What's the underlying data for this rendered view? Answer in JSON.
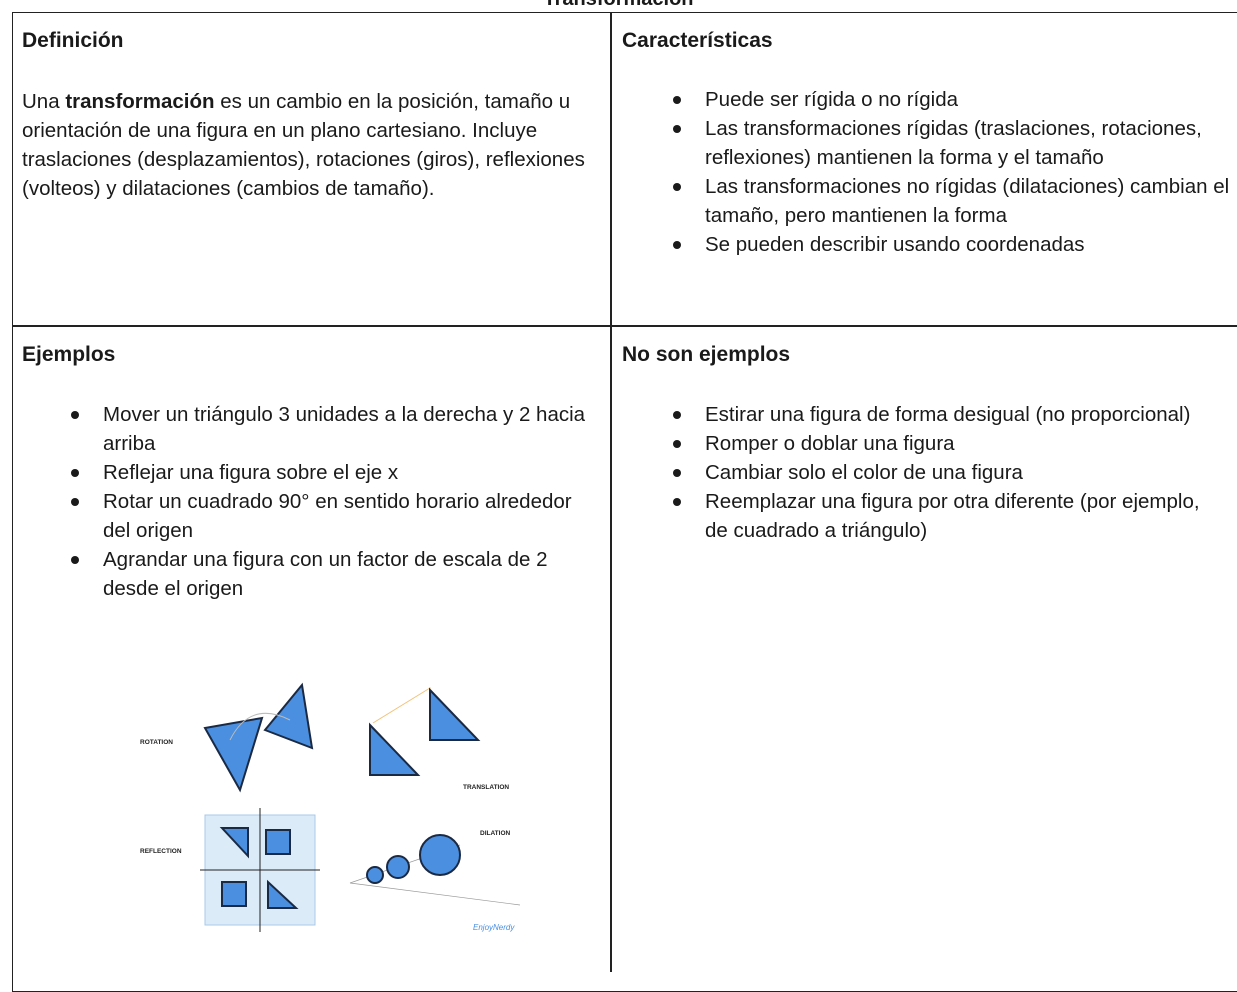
{
  "title": "Transformación",
  "definition": {
    "heading": "Definición",
    "text": [
      "Una ",
      "transformación",
      " es un cambio en la posición, tamaño u orientación de una figura en un plano cartesiano. Incluye traslaciones (desplazamientos), rotaciones (giros), reflexiones (volteos) y dilataciones (cambios de tamaño)."
    ]
  },
  "characteristics": {
    "heading": "Características",
    "items": [
      "Puede ser rígida o no rígida",
      "Las transformaciones rígidas (traslaciones, rotaciones, reflexiones) mantienen la forma y el tamaño",
      "Las transformaciones no rígidas (dilataciones) cambian el tamaño, pero mantienen la forma",
      "Se pueden describir usando coordenadas"
    ]
  },
  "examples": {
    "heading": "Ejemplos",
    "items": [
      "Mover un triángulo 3 unidades a la derecha y 2 hacia arriba",
      "Reflejar una figura sobre el eje x",
      "Rotar un cuadrado 90° en sentido horario alrededor del origen",
      "Agrandar una figura con un factor de escala de 2 desde el origen"
    ],
    "image_labels": [
      "ROTATION",
      "TRANSLATION",
      "REFLECTION",
      "DILATION",
      "EnjoyNerdy"
    ]
  },
  "non_examples": {
    "heading": "No son ejemplos",
    "items": [
      "Estirar una figura de forma desigual (no proporcional)",
      "Romper o doblar una figura",
      "Cambiar solo el color de una figura",
      "Reemplazar una figura por otra diferente (por ejemplo, de cuadrado a triángulo)"
    ]
  }
}
